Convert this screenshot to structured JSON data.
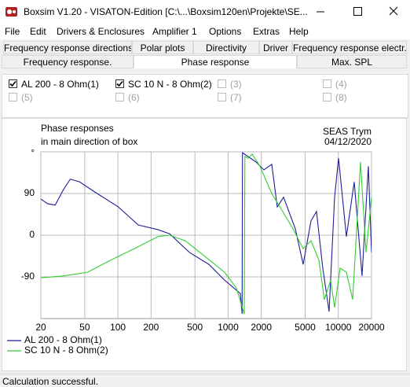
{
  "window": {
    "title": "Boxsim V1.20 - VISATON-Edition [C:\\...\\Boxsim120en\\Projekte\\SE..."
  },
  "menu": [
    "File",
    "Edit",
    "Drivers & Enclosures",
    "Amplifier 1",
    "Options",
    "Extras",
    "Help"
  ],
  "tabs_row1": [
    {
      "label": "Frequency response directions",
      "selected": false
    },
    {
      "label": "Polar plots",
      "selected": false
    },
    {
      "label": "Directivity",
      "selected": false
    },
    {
      "label": "Driver",
      "selected": false
    },
    {
      "label": "Frequency response electr..",
      "selected": false
    }
  ],
  "tabs_row2": [
    {
      "label": "Frequency response.",
      "selected": false
    },
    {
      "label": "Phase response",
      "selected": true
    },
    {
      "label": "Max. SPL",
      "selected": false
    }
  ],
  "drivers": [
    {
      "label": "AL 200 - 8 Ohm(1)",
      "checked": true,
      "enabled": true
    },
    {
      "label": "SC 10 N - 8 Ohm(2)",
      "checked": true,
      "enabled": true
    },
    {
      "label": "(3)",
      "checked": false,
      "enabled": false
    },
    {
      "label": "(4)",
      "checked": false,
      "enabled": false
    },
    {
      "label": "(5)",
      "checked": false,
      "enabled": false
    },
    {
      "label": "(6)",
      "checked": false,
      "enabled": false
    },
    {
      "label": "(7)",
      "checked": false,
      "enabled": false
    },
    {
      "label": "(8)",
      "checked": false,
      "enabled": false
    }
  ],
  "chart_data": {
    "type": "line",
    "title": "Phase responses",
    "subtitle": "in main direction of box",
    "annotations": [
      "SEAS Trym",
      "04/12/2020"
    ],
    "log_x": true,
    "grid": true,
    "xlim": [
      20,
      20000
    ],
    "xticks": [
      20,
      50,
      100,
      200,
      500,
      1000,
      2000,
      5000,
      10000,
      20000
    ],
    "ylim": [
      -180,
      180
    ],
    "yticks": [
      {
        "value": 180,
        "label": "°"
      },
      90,
      0,
      -90
    ],
    "series": [
      {
        "name": "AL 200 - 8 Ohm(1)",
        "color": "#1f1f99",
        "x": [
          20,
          23,
          27,
          32,
          37,
          45,
          62,
          101,
          153,
          231,
          295,
          445,
          670,
          929,
          1291,
          1340,
          1350,
          1448,
          1792,
          2111,
          2489,
          2793,
          3184,
          4070,
          4797,
          5650,
          6339,
          7225,
          8246,
          9250,
          10047,
          11830,
          13935,
          16413,
          18720,
          20000
        ],
        "values": [
          78,
          68,
          65,
          98,
          121,
          115,
          93,
          61,
          22,
          12,
          3,
          -37,
          -63,
          -97,
          -126,
          -170,
          178,
          173,
          158,
          141,
          153,
          61,
          82,
          14,
          -63,
          31,
          51,
          -71,
          -165,
          82,
          166,
          -3,
          115,
          -88,
          149,
          -37
        ]
      },
      {
        "name": "SC 10 N - 8 Ohm(2)",
        "color": "#33cc33",
        "x": [
          20,
          32,
          53,
          86,
          141,
          231,
          295,
          409,
          617,
          929,
          1189,
          1400,
          1420,
          1521,
          1652,
          1945,
          2489,
          3184,
          3873,
          4797,
          5650,
          6666,
          7469,
          8520,
          9250,
          10376,
          11830,
          13490,
          15887,
          17838,
          20000
        ],
        "values": [
          -92,
          -88,
          -80,
          -54,
          -29,
          -3,
          0,
          -12,
          -46,
          -80,
          -114,
          -170,
          170,
          166,
          175,
          149,
          90,
          48,
          14,
          -29,
          -12,
          -54,
          -139,
          -97,
          -156,
          -71,
          -80,
          -139,
          158,
          -37,
          82
        ]
      }
    ]
  },
  "status": "Calculation successful."
}
